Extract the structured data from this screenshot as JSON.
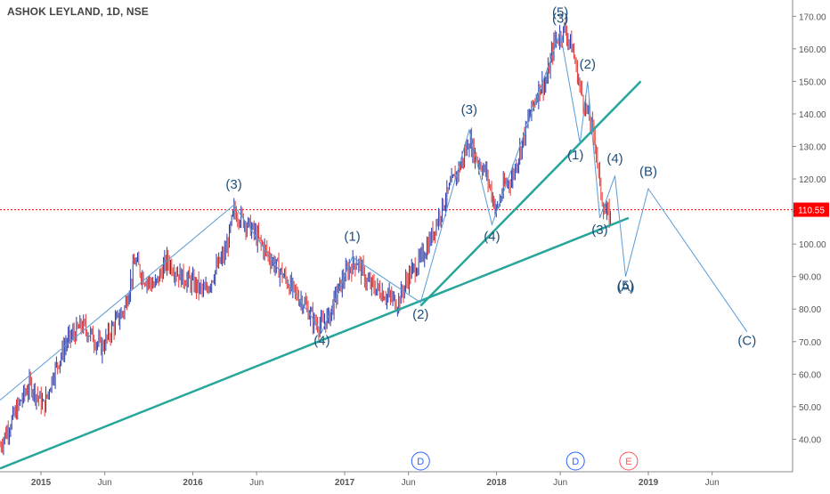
{
  "chart_data": {
    "type": "line",
    "title": "ASHOK LEYLAND, 1D, NSE",
    "price_marker": {
      "label": "110.55",
      "value": 110.55,
      "color": "#ff0000"
    },
    "y_ticks": [
      "40.00",
      "50.00",
      "60.00",
      "70.00",
      "80.00",
      "90.00",
      "100.00",
      "110.00",
      "120.00",
      "130.00",
      "140.00",
      "150.00",
      "160.00",
      "170.00"
    ],
    "y_tick_values": [
      40,
      50,
      60,
      70,
      80,
      90,
      100,
      110,
      120,
      130,
      140,
      150,
      160,
      170
    ],
    "x_ticks": [
      {
        "label": "2015",
        "t": 2015.0
      },
      {
        "label": "Jun",
        "t": 2015.42
      },
      {
        "label": "2016",
        "t": 2016.0
      },
      {
        "label": "Jun",
        "t": 2016.42
      },
      {
        "label": "2017",
        "t": 2017.0
      },
      {
        "label": "Jun",
        "t": 2017.42
      },
      {
        "label": "2018",
        "t": 2018.0
      },
      {
        "label": "Jun",
        "t": 2018.42
      },
      {
        "label": "2019",
        "t": 2019.0
      },
      {
        "label": "Jun",
        "t": 2019.42
      }
    ],
    "year_labels": [
      "2015",
      "2016",
      "2017",
      "2018",
      "2019"
    ],
    "price_path": [
      [
        2014.73,
        38
      ],
      [
        2014.8,
        45
      ],
      [
        2014.88,
        53
      ],
      [
        2014.93,
        57
      ],
      [
        2015.02,
        50
      ],
      [
        2015.08,
        60
      ],
      [
        2015.17,
        70
      ],
      [
        2015.27,
        75
      ],
      [
        2015.33,
        72
      ],
      [
        2015.4,
        68
      ],
      [
        2015.48,
        75
      ],
      [
        2015.55,
        80
      ],
      [
        2015.62,
        95
      ],
      [
        2015.67,
        90
      ],
      [
        2015.75,
        87
      ],
      [
        2015.83,
        95
      ],
      [
        2015.92,
        90
      ],
      [
        2016.0,
        88
      ],
      [
        2016.08,
        85
      ],
      [
        2016.15,
        92
      ],
      [
        2016.22,
        98
      ],
      [
        2016.27,
        110
      ],
      [
        2016.32,
        108
      ],
      [
        2016.38,
        105
      ],
      [
        2016.45,
        100
      ],
      [
        2016.52,
        95
      ],
      [
        2016.6,
        90
      ],
      [
        2016.67,
        85
      ],
      [
        2016.73,
        82
      ],
      [
        2016.8,
        76
      ],
      [
        2016.85,
        75
      ],
      [
        2016.9,
        78
      ],
      [
        2016.95,
        85
      ],
      [
        2017.02,
        92
      ],
      [
        2017.08,
        95
      ],
      [
        2017.15,
        88
      ],
      [
        2017.22,
        86
      ],
      [
        2017.28,
        84
      ],
      [
        2017.35,
        82
      ],
      [
        2017.42,
        90
      ],
      [
        2017.5,
        95
      ],
      [
        2017.57,
        102
      ],
      [
        2017.63,
        110
      ],
      [
        2017.7,
        118
      ],
      [
        2017.77,
        125
      ],
      [
        2017.82,
        132
      ],
      [
        2017.87,
        126
      ],
      [
        2017.93,
        122
      ],
      [
        2018.0,
        110
      ],
      [
        2018.05,
        118
      ],
      [
        2018.1,
        120
      ],
      [
        2018.15,
        128
      ],
      [
        2018.22,
        140
      ],
      [
        2018.28,
        148
      ],
      [
        2018.33,
        150
      ],
      [
        2018.38,
        162
      ],
      [
        2018.45,
        166
      ],
      [
        2018.5,
        160
      ],
      [
        2018.55,
        148
      ],
      [
        2018.6,
        140
      ],
      [
        2018.65,
        132
      ],
      [
        2018.68,
        118
      ],
      [
        2018.71,
        110
      ],
      [
        2018.75,
        108
      ]
    ],
    "wave_lines": [
      [
        [
          2014.73,
          52
        ],
        [
          2016.27,
          112
        ],
        [
          2016.85,
          73
        ],
        [
          2017.05,
          96
        ],
        [
          2017.5,
          82
        ],
        [
          2017.82,
          135
        ],
        [
          2017.97,
          106
        ],
        [
          2018.42,
          165
        ],
        [
          2018.55,
          131
        ],
        [
          2018.6,
          150
        ],
        [
          2018.68,
          108
        ],
        [
          2018.78,
          121
        ],
        [
          2018.85,
          90
        ],
        [
          2019.0,
          117
        ],
        [
          2019.65,
          73
        ]
      ]
    ],
    "trend_lines": [
      {
        "color": "#26a69a",
        "points": [
          [
            2014.73,
            31
          ],
          [
            2018.87,
            108
          ]
        ]
      },
      {
        "color": "#26a69a",
        "points": [
          [
            2017.5,
            81
          ],
          [
            2018.95,
            150
          ]
        ]
      }
    ],
    "wave_labels": [
      {
        "text": "(3)",
        "t": 2016.27,
        "v": 117
      },
      {
        "text": "(4)",
        "t": 2016.85,
        "v": 69
      },
      {
        "text": "(1)",
        "t": 2017.05,
        "v": 101
      },
      {
        "text": "(2)",
        "t": 2017.5,
        "v": 77
      },
      {
        "text": "(3)",
        "t": 2017.82,
        "v": 140
      },
      {
        "text": "(4)",
        "t": 2017.97,
        "v": 101
      },
      {
        "text": "(5)",
        "t": 2018.42,
        "v": 170
      },
      {
        "text": "(3)",
        "t": 2018.42,
        "v": 168
      },
      {
        "text": "(2)",
        "t": 2018.6,
        "v": 154
      },
      {
        "text": "(1)",
        "t": 2018.52,
        "v": 126
      },
      {
        "text": "(4)",
        "t": 2018.78,
        "v": 125
      },
      {
        "text": "(3)",
        "t": 2018.68,
        "v": 103
      },
      {
        "text": "(5)",
        "t": 2018.85,
        "v": 86
      },
      {
        "text": "(A)",
        "t": 2018.85,
        "v": 85.5
      },
      {
        "text": "(B)",
        "t": 2019.0,
        "v": 121
      },
      {
        "text": "(C)",
        "t": 2019.65,
        "v": 69
      }
    ],
    "event_markers": [
      {
        "text": "D",
        "t": 2017.5,
        "color": "#2962ff"
      },
      {
        "text": "D",
        "t": 2018.52,
        "color": "#2962ff"
      },
      {
        "text": "E",
        "t": 2018.87,
        "color": "#ff5252"
      }
    ],
    "colors": {
      "wave": "#5b9bd5",
      "trend": "#26a69a",
      "candle_up": "#2a3aa8",
      "candle_down": "#e53935",
      "axis_text": "#555555",
      "label": "#1f4e79"
    },
    "ylim": [
      30,
      175
    ],
    "xlim": [
      2014.73,
      2019.95
    ]
  }
}
